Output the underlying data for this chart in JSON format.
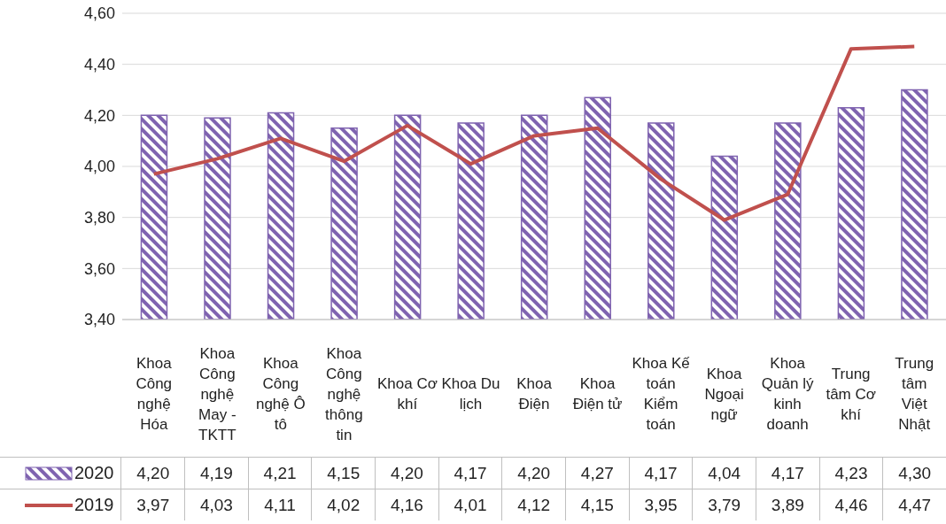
{
  "chart_data": {
    "type": "bar",
    "categories": [
      "Khoa Công nghệ Hóa",
      "Khoa Công nghệ May - TKTT",
      "Khoa Công nghệ Ô tô",
      "Khoa Công nghệ thông tin",
      "Khoa Cơ khí",
      "Khoa Du lịch",
      "Khoa Điện",
      "Khoa Điện tử",
      "Khoa Kế toán Kiểm toán",
      "Khoa Ngoại ngữ",
      "Khoa Quản lý kinh doanh",
      "Trung tâm Cơ khí",
      "Trung tâm Việt Nhật"
    ],
    "series": [
      {
        "name": "2020",
        "color": "#7f63b0",
        "values": [
          4.2,
          4.19,
          4.21,
          4.15,
          4.2,
          4.17,
          4.2,
          4.27,
          4.17,
          4.04,
          4.17,
          4.23,
          4.3
        ],
        "value_labels": [
          "4,20",
          "4,19",
          "4,21",
          "4,15",
          "4,20",
          "4,17",
          "4,20",
          "4,27",
          "4,17",
          "4,04",
          "4,17",
          "4,23",
          "4,30"
        ]
      },
      {
        "name": "2019",
        "type": "line",
        "color": "#c0504d",
        "values": [
          3.97,
          4.03,
          4.11,
          4.02,
          4.16,
          4.01,
          4.12,
          4.15,
          3.95,
          3.79,
          3.89,
          4.46,
          4.47
        ],
        "value_labels": [
          "3,97",
          "4,03",
          "4,11",
          "4,02",
          "4,16",
          "4,01",
          "4,12",
          "4,15",
          "3,95",
          "3,79",
          "3,89",
          "4,46",
          "4,47"
        ]
      }
    ],
    "ylim": [
      3.4,
      4.6
    ],
    "yticks": [
      {
        "value": 3.4,
        "label": "3,40"
      },
      {
        "value": 3.6,
        "label": "3,60"
      },
      {
        "value": 3.8,
        "label": "3,80"
      },
      {
        "value": 4.0,
        "label": "4,00"
      },
      {
        "value": 4.2,
        "label": "4,20"
      },
      {
        "value": 4.4,
        "label": "4,40"
      },
      {
        "value": 4.6,
        "label": "4,60"
      }
    ],
    "grid": "y",
    "legend": "bottom"
  }
}
